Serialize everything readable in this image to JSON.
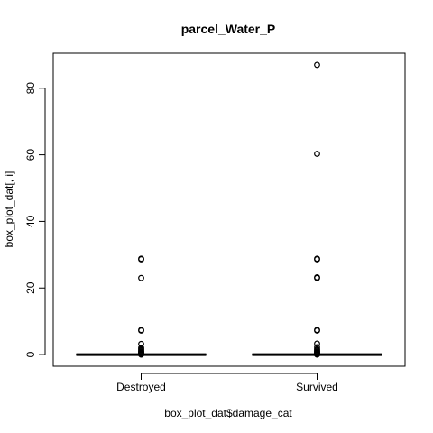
{
  "chart_data": {
    "type": "box",
    "title": "parcel_Water_P",
    "xlabel": "box_plot_dat$damage_cat",
    "ylabel": "box_plot_dat[, i]",
    "categories": [
      "Destroyed",
      "Survived"
    ],
    "ylim": [
      -3.5,
      90.5
    ],
    "yticks": [
      0,
      20,
      40,
      60,
      80
    ],
    "ytick_labels": [
      "0",
      "20",
      "40",
      "60",
      "80"
    ],
    "grid": false,
    "legend": "none",
    "boxes": [
      {
        "category": "Destroyed",
        "median": 0,
        "q1": 0,
        "q3": 0,
        "whisker_low": 0,
        "whisker_high": 0,
        "outliers": [
          0,
          0.2,
          0.4,
          0.6,
          0.8,
          1.0,
          1.3,
          1.6,
          2.0,
          3.2,
          7.2,
          7.4,
          23.0,
          28.6,
          28.8
        ]
      },
      {
        "category": "Survived",
        "median": 0,
        "q1": 0,
        "q3": 0,
        "whisker_low": 0,
        "whisker_high": 0,
        "outliers": [
          0,
          0.2,
          0.4,
          0.6,
          0.8,
          1.0,
          1.3,
          1.6,
          2.2,
          3.3,
          7.2,
          7.4,
          23.0,
          23.2,
          28.6,
          28.8,
          60.3,
          87.0
        ]
      }
    ]
  }
}
